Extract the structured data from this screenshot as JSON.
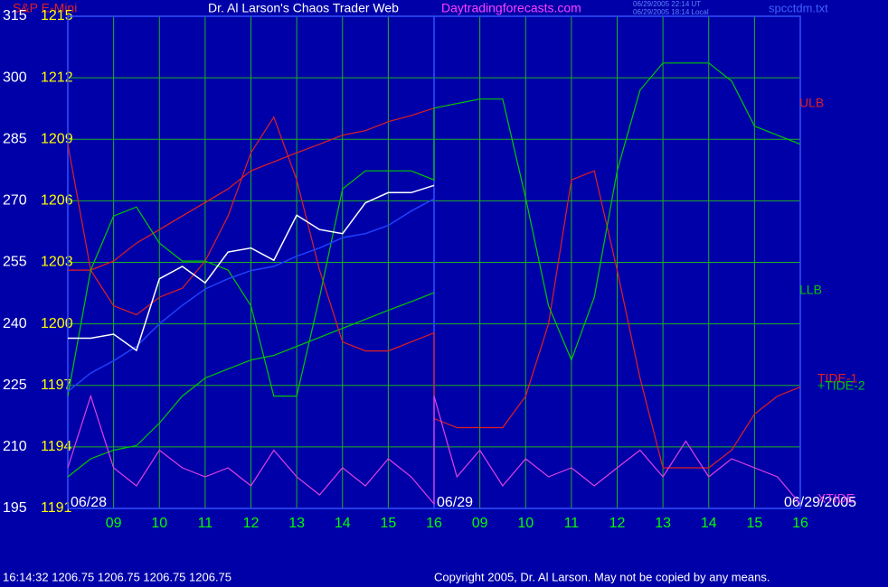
{
  "chart_data": {
    "type": "line",
    "title": "Dr. Al Larson's Chaos Trader Web",
    "symbol": "S&P E-Mini",
    "website": "Daytradingforecasts.com",
    "timestamps": [
      "06/29/2005 22:14 UT",
      "06/29/2005 18:14 Local"
    ],
    "file": "spcctdm.txt",
    "status": "16:14:32 1206.75 1206.75 1206.75 1206.75",
    "copyright": "Copyright 2005, Dr. Al Larson. May not be copied by any means.",
    "date_labels": [
      {
        "value": 0,
        "label": "06/28"
      },
      {
        "value": 8,
        "label": "06/29"
      },
      {
        "value": 16,
        "label": "06/29/2005"
      }
    ],
    "x": [
      0,
      0.5,
      1,
      1.5,
      2,
      2.5,
      3,
      3.5,
      4,
      4.5,
      5,
      5.5,
      6,
      6.5,
      7,
      7.5,
      8,
      8,
      8.5,
      9,
      9.5,
      10,
      10.5,
      11,
      11.5,
      12,
      12.5,
      13,
      13.5,
      14,
      14.5,
      15,
      15.5,
      16
    ],
    "xlim": [
      0,
      16
    ],
    "xticks": [
      {
        "value": 1,
        "label": "09"
      },
      {
        "value": 2,
        "label": "10"
      },
      {
        "value": 3,
        "label": "11"
      },
      {
        "value": 4,
        "label": "12"
      },
      {
        "value": 5,
        "label": "13"
      },
      {
        "value": 6,
        "label": "14"
      },
      {
        "value": 7,
        "label": "15"
      },
      {
        "value": 8,
        "label": "16"
      },
      {
        "value": 9,
        "label": "09"
      },
      {
        "value": 10,
        "label": "10"
      },
      {
        "value": 11,
        "label": "11"
      },
      {
        "value": 12,
        "label": "12"
      },
      {
        "value": 13,
        "label": "13"
      },
      {
        "value": 14,
        "label": "14"
      },
      {
        "value": 15,
        "label": "15"
      },
      {
        "value": 16,
        "label": "16"
      }
    ],
    "ylim": [
      195,
      315
    ],
    "yticks": [
      195,
      210,
      225,
      240,
      255,
      270,
      285,
      300,
      315
    ],
    "y2lim": [
      1191,
      1215
    ],
    "y2ticks": [
      1191,
      1194,
      1197,
      1200,
      1203,
      1206,
      1209,
      1212,
      1215
    ],
    "grid": true,
    "series": [
      {
        "name": "ULB",
        "color": "#e02020",
        "values": [
          253.1,
          253.1,
          255.3,
          259.7,
          263,
          266.3,
          269.6,
          272.9,
          277.3,
          279.5,
          281.7,
          283.8,
          286,
          287.1,
          289.3,
          290.8,
          292.6,
          null,
          null,
          null,
          null,
          null,
          null,
          null,
          null,
          null,
          null,
          null,
          null,
          null,
          null,
          null,
          null,
          null
        ]
      },
      {
        "name": "LLB",
        "color": "#00c800",
        "values": [
          202.7,
          207.1,
          209.2,
          210.3,
          215.8,
          222.4,
          226.8,
          229,
          231.2,
          232.3,
          234.5,
          236.7,
          238.9,
          241.1,
          243.3,
          245.4,
          247.6,
          null,
          null,
          null,
          null,
          null,
          null,
          null,
          null,
          null,
          null,
          null,
          null,
          null,
          null,
          null,
          null,
          null
        ]
      },
      {
        "name": "TIDE-1",
        "color": "#e02020",
        "values": [
          283.8,
          253.1,
          244.4,
          242.2,
          246.5,
          248.7,
          255.3,
          266.3,
          281.7,
          290.4,
          275.1,
          253.1,
          235.6,
          233.4,
          233.4,
          235.6,
          237.8,
          216.9,
          214.7,
          214.7,
          214.7,
          222.4,
          240,
          275.1,
          277.3,
          253.1,
          226.8,
          204.9,
          204.9,
          204.9,
          209.2,
          218,
          222.4,
          224.6
        ]
      },
      {
        "name": "+TIDE-2",
        "color": "#00c800",
        "values": [
          222.4,
          253.1,
          266.3,
          268.5,
          259.7,
          255.3,
          255.3,
          253.1,
          244.4,
          222.4,
          222.4,
          246.5,
          272.9,
          277.3,
          277.3,
          277.3,
          275.1,
          292.6,
          293.7,
          294.8,
          294.8,
          270.7,
          244.4,
          231.2,
          246.5,
          277.3,
          297,
          303.6,
          303.6,
          303.6,
          299.2,
          288.2,
          286,
          283.8
        ]
      },
      {
        "name": "XTIDE",
        "color": "#e040e0",
        "values": [
          204.9,
          222.4,
          204.9,
          200.5,
          209.2,
          204.9,
          202.7,
          204.9,
          200.5,
          209.2,
          202.7,
          198.3,
          204.9,
          200.5,
          207.1,
          202.7,
          196.1,
          222.4,
          202.7,
          209.2,
          200.5,
          207.1,
          202.7,
          204.9,
          200.5,
          204.9,
          209.2,
          202.7,
          211.4,
          202.7,
          207.1,
          204.9,
          202.7,
          196.1
        ]
      },
      {
        "color": "#2040ff",
        "axis": "y2",
        "values": [
          1196.7,
          1197.6,
          1198.2,
          1198.9,
          1200,
          1200.9,
          1201.7,
          1202.2,
          1202.6,
          1202.8,
          1203.3,
          1203.7,
          1204.2,
          1204.4,
          1204.8,
          1205.5,
          1206.1,
          null,
          null,
          null,
          null,
          null,
          null,
          null,
          null,
          null,
          null,
          null,
          null,
          null,
          null,
          null,
          null,
          null
        ]
      },
      {
        "color": "#ffffff",
        "axis": "y2",
        "values": [
          1199.3,
          1199.3,
          1199.5,
          1198.7,
          1202.2,
          1202.8,
          1202,
          1203.5,
          1203.7,
          1203.1,
          1205.3,
          1204.6,
          1204.4,
          1205.9,
          1206.4,
          1206.4,
          1206.75,
          null,
          null,
          null,
          null,
          null,
          null,
          null,
          null,
          null,
          null,
          null,
          null,
          null,
          null,
          null,
          null,
          null
        ]
      }
    ]
  }
}
